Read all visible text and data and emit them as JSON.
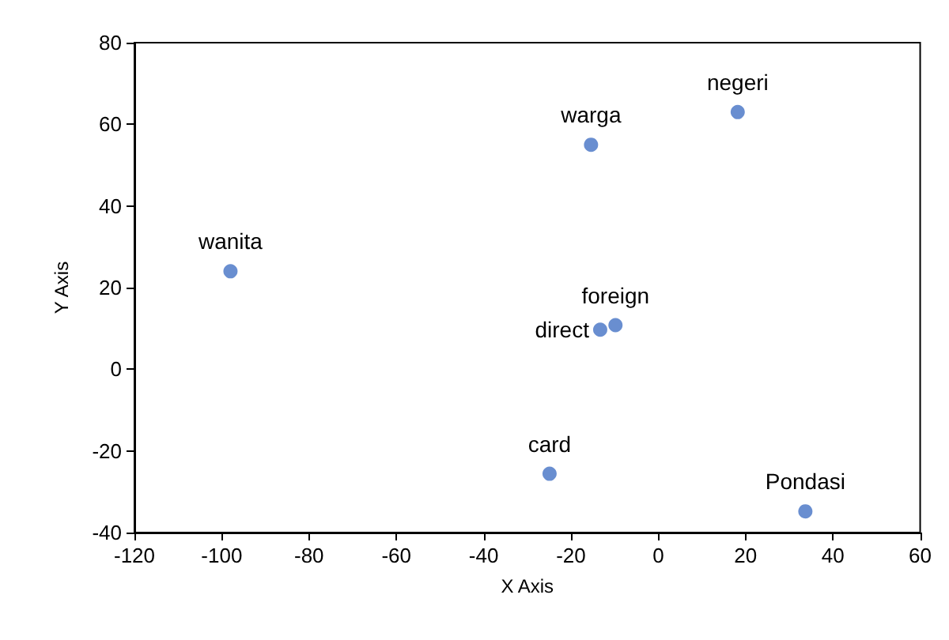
{
  "chart_data": {
    "type": "scatter",
    "xlabel": "X Axis",
    "ylabel": "Y Axis",
    "x": [
      -98,
      -15.4,
      18.2,
      -13.3,
      -9.8,
      -24.9,
      33.7
    ],
    "values": [
      24,
      55,
      63,
      9.7,
      10.8,
      -25.6,
      -34.8
    ],
    "color": "#4472c4",
    "marker": "circle",
    "grid": false,
    "xlim": [
      -120,
      60
    ],
    "xticks": [
      -120,
      -100,
      -80,
      -60,
      -40,
      -20,
      0,
      20,
      40,
      60
    ],
    "ylim": [
      -40,
      80
    ],
    "yticks": [
      -40,
      -20,
      0,
      20,
      40,
      60,
      80
    ],
    "annotations": [
      {
        "text": "wanita",
        "x": -98,
        "y": 24
      },
      {
        "text": "warga",
        "x": -15.4,
        "y": 55
      },
      {
        "text": "negeri",
        "x": 18.2,
        "y": 63
      },
      {
        "text": "direct",
        "x": -13.3,
        "y": 9.7
      },
      {
        "text": "foreign",
        "x": -9.8,
        "y": 10.8
      },
      {
        "text": "card",
        "x": -24.9,
        "y": -25.6
      },
      {
        "text": "Pondasi",
        "x": 33.7,
        "y": -34.8
      }
    ]
  }
}
